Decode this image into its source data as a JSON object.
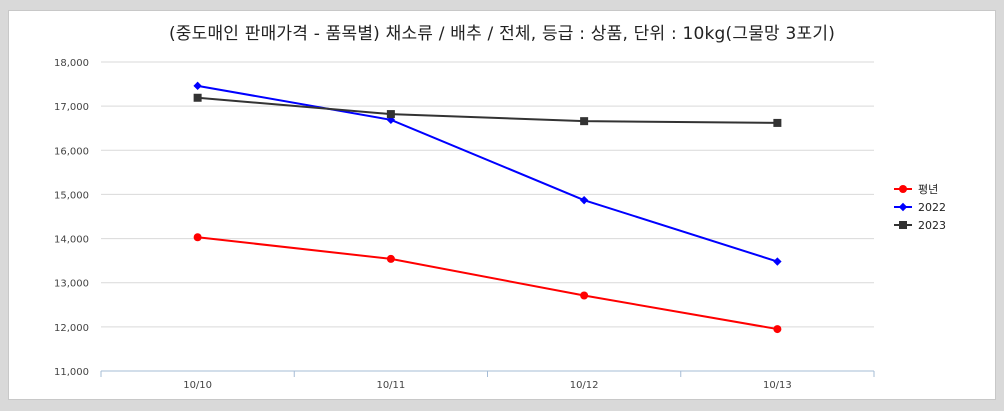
{
  "chart_data": {
    "type": "line",
    "title": "(중도매인 판매가격 - 품목별) 채소류 / 배추 / 전체, 등급 : 상품, 단위 : 10kg(그물망 3포기)",
    "categories": [
      "10/10",
      "10/11",
      "10/12",
      "10/13"
    ],
    "ylim": [
      11000,
      18000
    ],
    "yticks": [
      "11,000",
      "12,000",
      "13,000",
      "14,000",
      "15,000",
      "16,000",
      "17,000",
      "18,000"
    ],
    "ytick_values": [
      11000,
      12000,
      13000,
      14000,
      15000,
      16000,
      17000,
      18000
    ],
    "grid": true,
    "legend_position": "right",
    "series": [
      {
        "name": "평년",
        "values": [
          14030,
          13540,
          12710,
          11950
        ],
        "color": "#ff0000",
        "marker": "circle"
      },
      {
        "name": "2022",
        "values": [
          17460,
          16690,
          14870,
          13480
        ],
        "color": "#0000ff",
        "marker": "diamond"
      },
      {
        "name": "2023",
        "values": [
          17190,
          16820,
          16660,
          16620
        ],
        "color": "#333333",
        "marker": "square"
      }
    ]
  }
}
